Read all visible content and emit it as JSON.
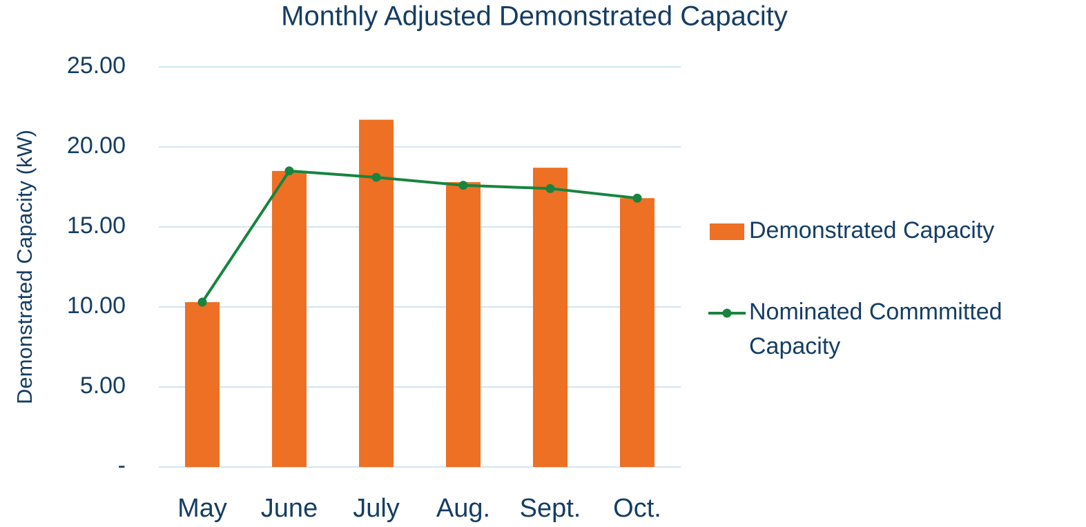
{
  "chart_data": {
    "type": "bar",
    "title": "Monthly Adjusted Demonstrated Capacity",
    "y_label": "Demonstrated Capacity (kW)",
    "categories": [
      "May",
      "June",
      "July",
      "Aug.",
      "Sept.",
      "Oct."
    ],
    "series": [
      {
        "name": "Demonstrated Capacity",
        "type": "bar",
        "color": "#ed7024",
        "values": [
          10.3,
          18.5,
          21.7,
          17.8,
          18.7,
          16.8
        ]
      },
      {
        "name": "Nominated Commmitted Capacity",
        "type": "line",
        "color": "#17843f",
        "values": [
          10.3,
          18.5,
          18.1,
          17.6,
          17.4,
          16.8
        ]
      }
    ],
    "ylim": [
      0,
      25
    ],
    "yticks": [
      {
        "value": 0,
        "label": "-"
      },
      {
        "value": 5,
        "label": "5.00"
      },
      {
        "value": 10,
        "label": "10.00"
      },
      {
        "value": 15,
        "label": "15.00"
      },
      {
        "value": 20,
        "label": "20.00"
      },
      {
        "value": 25,
        "label": "25.00"
      }
    ],
    "grid": true,
    "legend": "right"
  }
}
